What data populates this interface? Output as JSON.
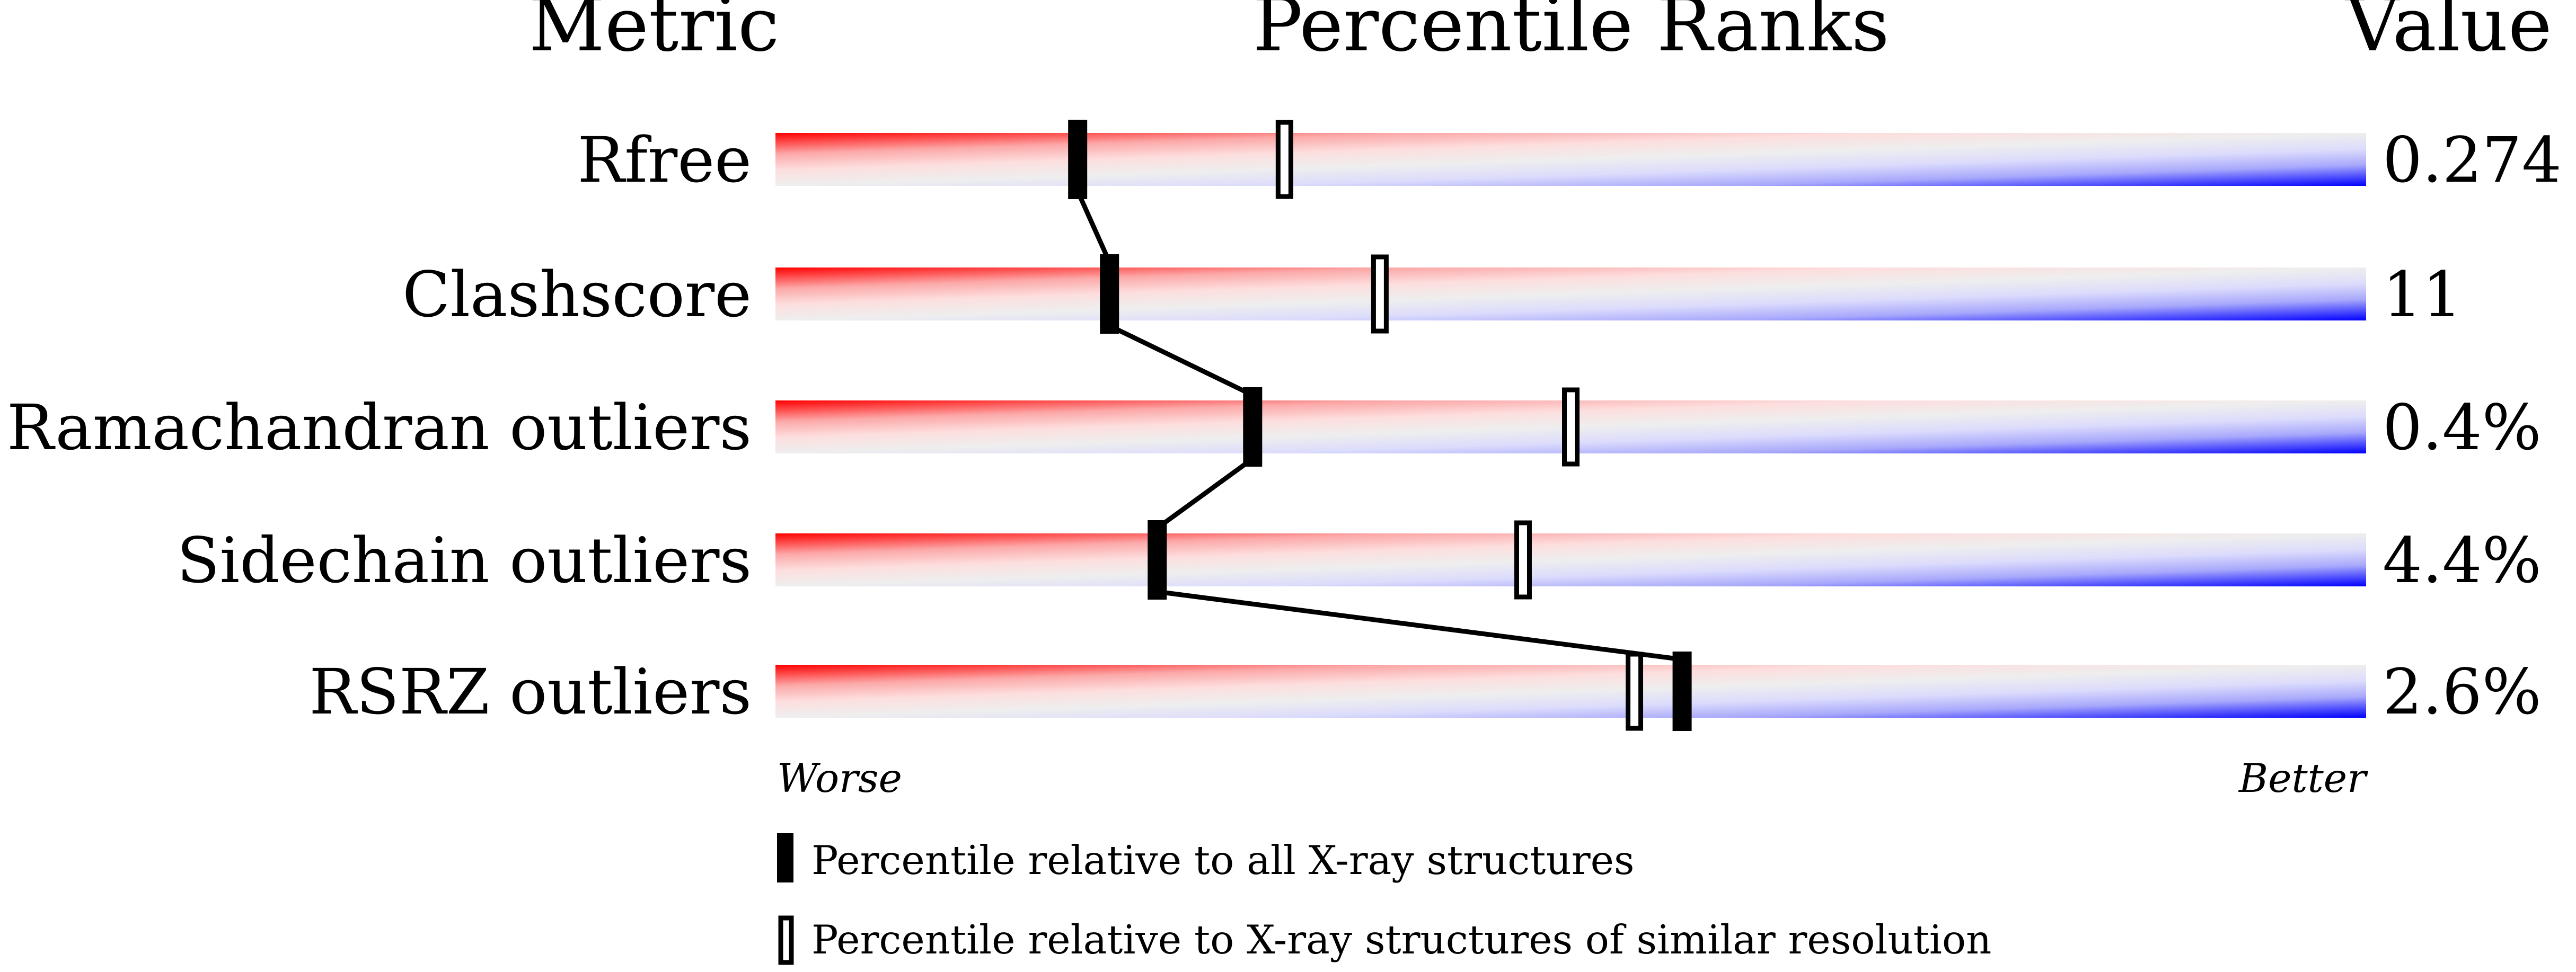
{
  "chart_data": {
    "type": "percentile-bar",
    "headers": {
      "metric": "Metric",
      "ranks": "Percentile Ranks",
      "value": "Value"
    },
    "axis": {
      "left_label": "Worse",
      "right_label": "Better",
      "range": [
        0,
        100
      ]
    },
    "colors": {
      "worse": "#ff0000",
      "middle": "#eeeeee",
      "better": "#0000ff"
    },
    "rows": [
      {
        "metric": "Rfree",
        "value": "0.274",
        "percentile_all": 19,
        "percentile_similar": 32
      },
      {
        "metric": "Clashscore",
        "value": "11",
        "percentile_all": 21,
        "percentile_similar": 38
      },
      {
        "metric": "Ramachandran outliers",
        "value": "0.4%",
        "percentile_all": 30,
        "percentile_similar": 50
      },
      {
        "metric": "Sidechain outliers",
        "value": "4.4%",
        "percentile_all": 24,
        "percentile_similar": 47
      },
      {
        "metric": "RSRZ outliers",
        "value": "2.6%",
        "percentile_all": 57,
        "percentile_similar": 54
      }
    ],
    "legend": {
      "all": "Percentile relative to all X-ray structures",
      "similar": "Percentile relative to X-ray structures of similar resolution"
    }
  }
}
